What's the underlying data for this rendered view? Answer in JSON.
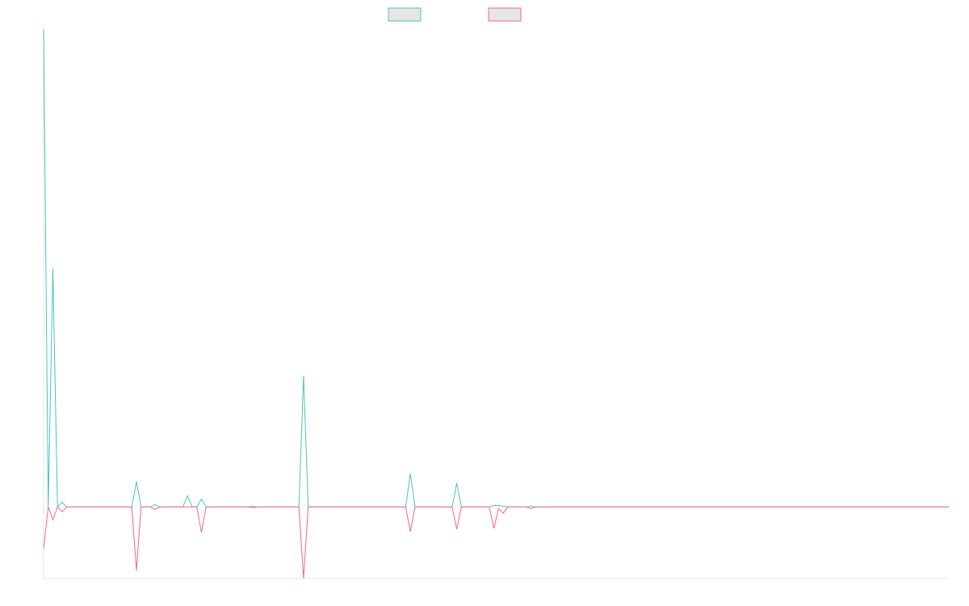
{
  "chart_data": {
    "type": "line",
    "title": "",
    "xlabel": "",
    "ylabel": "",
    "grid": false,
    "legend_position": "top",
    "ylim": [
      -9,
      60
    ],
    "x": [
      0,
      1,
      2,
      3,
      4,
      5,
      6,
      7,
      8,
      9,
      10,
      11,
      12,
      13,
      14,
      15,
      16,
      17,
      18,
      19,
      20,
      21,
      22,
      23,
      24,
      25,
      26,
      27,
      28,
      29,
      30,
      31,
      32,
      33,
      34,
      35,
      36,
      37,
      38,
      39,
      40,
      41,
      42,
      43,
      44,
      45,
      46,
      47,
      48,
      49,
      50,
      51,
      52,
      53,
      54,
      55,
      56,
      57,
      58,
      59,
      60,
      61,
      62,
      63,
      64,
      65,
      66,
      67,
      68,
      69,
      70,
      71,
      72,
      73,
      74,
      75,
      76,
      77,
      78,
      79,
      80,
      81,
      82,
      83,
      84,
      85,
      86,
      87,
      88,
      89,
      90,
      91,
      92,
      93,
      94,
      95,
      96,
      97,
      98,
      99,
      100,
      101,
      102,
      103,
      104,
      105,
      106,
      107,
      108,
      109,
      110,
      111,
      112,
      113,
      114,
      115,
      116,
      117,
      118,
      119,
      120,
      121,
      122,
      123,
      124,
      125,
      126,
      127,
      128,
      129,
      130,
      131,
      132,
      133,
      134,
      135,
      136,
      137,
      138,
      139,
      140,
      141,
      142,
      143,
      144,
      145,
      146,
      147,
      148,
      149,
      150,
      151,
      152,
      153,
      154,
      155,
      156,
      157,
      158,
      159,
      160,
      161,
      162,
      163,
      164,
      165,
      166,
      167,
      168,
      169,
      170,
      171,
      172,
      173,
      174,
      175,
      176,
      177,
      178,
      179,
      180,
      181,
      182,
      183,
      184,
      185,
      186,
      187,
      188,
      189,
      190,
      191,
      192,
      193,
      194,
      195
    ],
    "series": [
      {
        "name": "",
        "color": "#4bc0c0",
        "points": [
          [
            0,
            60
          ],
          [
            1,
            0
          ],
          [
            2,
            30
          ],
          [
            3,
            0
          ],
          [
            4,
            0.6
          ],
          [
            5,
            0
          ],
          [
            19,
            0
          ],
          [
            20,
            3.2
          ],
          [
            21,
            0
          ],
          [
            23,
            0
          ],
          [
            24,
            0.3
          ],
          [
            25,
            0
          ],
          [
            30,
            0
          ],
          [
            31,
            1.4
          ],
          [
            32,
            0
          ],
          [
            33,
            0
          ],
          [
            34,
            1
          ],
          [
            35,
            0
          ],
          [
            44,
            0
          ],
          [
            45,
            0.1
          ],
          [
            46,
            0
          ],
          [
            55,
            0
          ],
          [
            56,
            16.5
          ],
          [
            57,
            0
          ],
          [
            78,
            0
          ],
          [
            79,
            4.2
          ],
          [
            80,
            0
          ],
          [
            88,
            0
          ],
          [
            89,
            3
          ],
          [
            90,
            0
          ],
          [
            96,
            0
          ],
          [
            97,
            0.2
          ],
          [
            98,
            0.2
          ],
          [
            99,
            0.1
          ],
          [
            100,
            0
          ],
          [
            104,
            0
          ],
          [
            105,
            0.1
          ],
          [
            106,
            0
          ],
          [
            195,
            0
          ]
        ]
      },
      {
        "name": "",
        "color": "#ff6384",
        "points": [
          [
            0,
            -5.2
          ],
          [
            1,
            0
          ],
          [
            2,
            -1.6
          ],
          [
            3,
            0
          ],
          [
            4,
            -0.6
          ],
          [
            5,
            0
          ],
          [
            19,
            0
          ],
          [
            20,
            -8
          ],
          [
            21,
            0
          ],
          [
            23,
            0
          ],
          [
            24,
            -0.3
          ],
          [
            25,
            0
          ],
          [
            33,
            0
          ],
          [
            34,
            -3.2
          ],
          [
            35,
            0
          ],
          [
            44,
            0
          ],
          [
            45,
            -0.1
          ],
          [
            46,
            0
          ],
          [
            55,
            0
          ],
          [
            56,
            -9
          ],
          [
            57,
            0
          ],
          [
            78,
            0
          ],
          [
            79,
            -3.1
          ],
          [
            80,
            0
          ],
          [
            88,
            0
          ],
          [
            89,
            -2.8
          ],
          [
            90,
            0
          ],
          [
            96,
            0
          ],
          [
            97,
            -2.7
          ],
          [
            98,
            -0.2
          ],
          [
            99,
            -0.8
          ],
          [
            100,
            0
          ],
          [
            104,
            0
          ],
          [
            105,
            -0.2
          ],
          [
            106,
            0
          ],
          [
            195,
            0
          ]
        ]
      }
    ]
  }
}
